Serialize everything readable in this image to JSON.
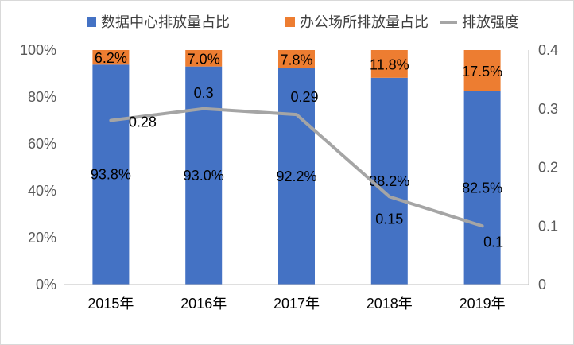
{
  "chart_data": {
    "type": "bar",
    "stacked": true,
    "categories": [
      "2015年",
      "2016年",
      "2017年",
      "2018年",
      "2019年"
    ],
    "series": [
      {
        "name": "数据中心排放量占比",
        "type": "bar",
        "axis": "left",
        "color": "#4472C4",
        "values": [
          93.8,
          93.0,
          92.2,
          88.2,
          82.5
        ],
        "labels": [
          "93.8%",
          "93.0%",
          "92.2%",
          "88.2%",
          "82.5%"
        ]
      },
      {
        "name": "办公场所排放量占比",
        "type": "bar",
        "axis": "left",
        "color": "#ED7D31",
        "values": [
          6.2,
          7.0,
          7.8,
          11.8,
          17.5
        ],
        "labels": [
          "6.2%",
          "7.0%",
          "7.8%",
          "11.8%",
          "17.5%"
        ]
      },
      {
        "name": "排放强度",
        "type": "line",
        "axis": "right",
        "color": "#A5A5A5",
        "values": [
          0.28,
          0.3,
          0.29,
          0.15,
          0.1
        ],
        "labels": [
          "0.28",
          "0.3",
          "0.29",
          "0.15",
          "0.1"
        ]
      }
    ],
    "y_left": {
      "ylim": [
        0,
        100
      ],
      "ticks": [
        "0%",
        "20%",
        "40%",
        "60%",
        "80%",
        "100%"
      ],
      "tick_values": [
        0,
        20,
        40,
        60,
        80,
        100
      ]
    },
    "y_right": {
      "ylim": [
        0,
        0.4
      ],
      "ticks": [
        "0",
        "0.1",
        "0.2",
        "0.3",
        "0.4"
      ],
      "tick_values": [
        0,
        0.1,
        0.2,
        0.3,
        0.4
      ]
    },
    "legend_position": "top",
    "grid": false,
    "title": "",
    "xlabel": "",
    "ylabel": ""
  }
}
